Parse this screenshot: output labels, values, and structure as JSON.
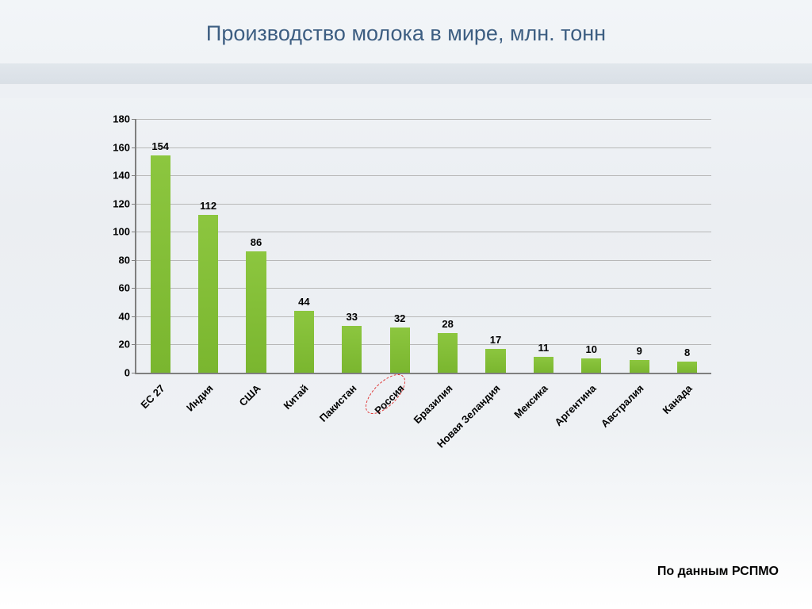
{
  "title": "Производство молока в мире, млн. тонн",
  "source": "По данным РСПМО",
  "chart": {
    "type": "bar",
    "categories": [
      "ЕС 27",
      "Индия",
      "США",
      "Китай",
      "Пакистан",
      "Россия",
      "Бразилия",
      "Новая Зеландия",
      "Мексика",
      "Аргентина",
      "Австралия",
      "Канада"
    ],
    "values": [
      154,
      112,
      86,
      44,
      33,
      32,
      28,
      17,
      11,
      10,
      9,
      8
    ],
    "bar_color": "#8cc63f",
    "ylim": [
      0,
      180
    ],
    "ytick_step": 20,
    "background": "transparent",
    "axis_color": "#7f7f7f",
    "grid_color": "#b8b8b8",
    "label_fontsize": 13,
    "value_fontsize": 13,
    "bar_group_width": 60.4,
    "bar_width_ratio": 0.42,
    "highlighted_index": 5,
    "highlight_color": "#e03030"
  },
  "typography": {
    "title_color": "#3d5e82",
    "title_fontsize": 27,
    "font_family": "Arial"
  }
}
